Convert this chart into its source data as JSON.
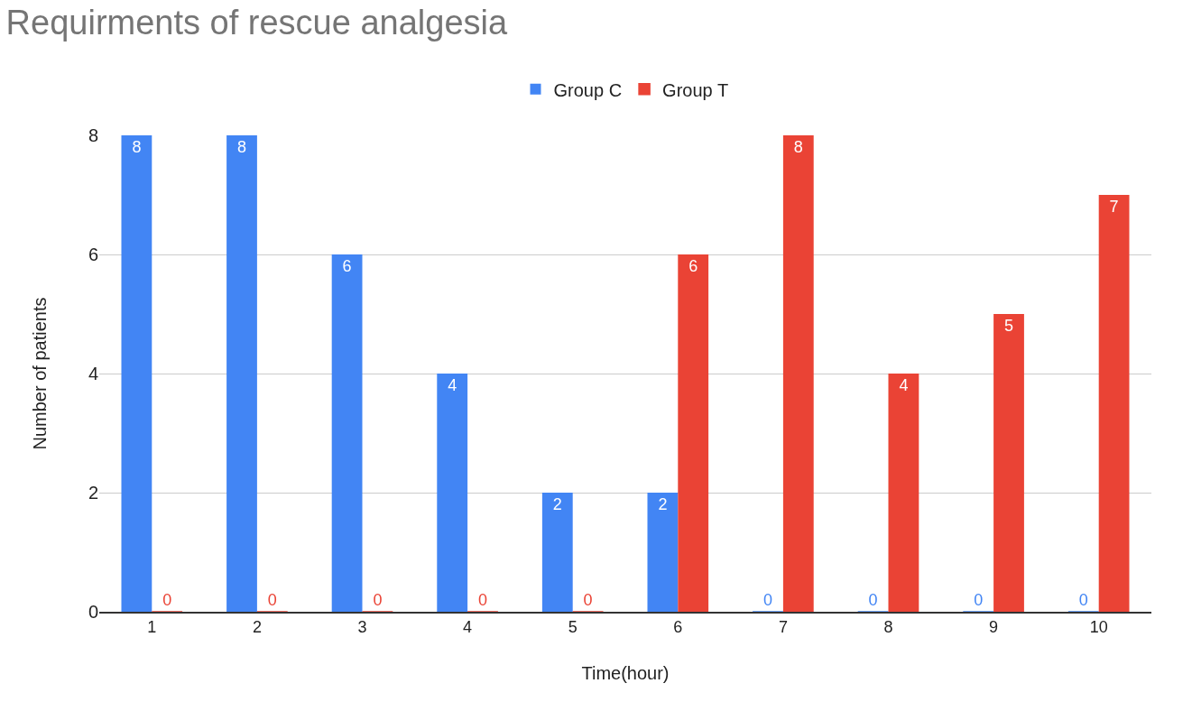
{
  "chart_data": {
    "type": "bar",
    "title": "Requirments of rescue analgesia",
    "xlabel": "Time(hour)",
    "ylabel": "Number of patients",
    "categories": [
      "1",
      "2",
      "3",
      "4",
      "5",
      "6",
      "7",
      "8",
      "9",
      "10"
    ],
    "series": [
      {
        "name": "Group C",
        "color": "#4285f4",
        "values": [
          8,
          8,
          6,
          4,
          2,
          2,
          0,
          0,
          0,
          0
        ]
      },
      {
        "name": "Group T",
        "color": "#ea4335",
        "values": [
          0,
          0,
          0,
          0,
          0,
          6,
          8,
          4,
          5,
          7
        ]
      }
    ],
    "ylim": [
      0,
      8
    ],
    "yticks": [
      0,
      2,
      4,
      6,
      8
    ],
    "grid": "y",
    "legend": "top",
    "data_labels": true
  }
}
